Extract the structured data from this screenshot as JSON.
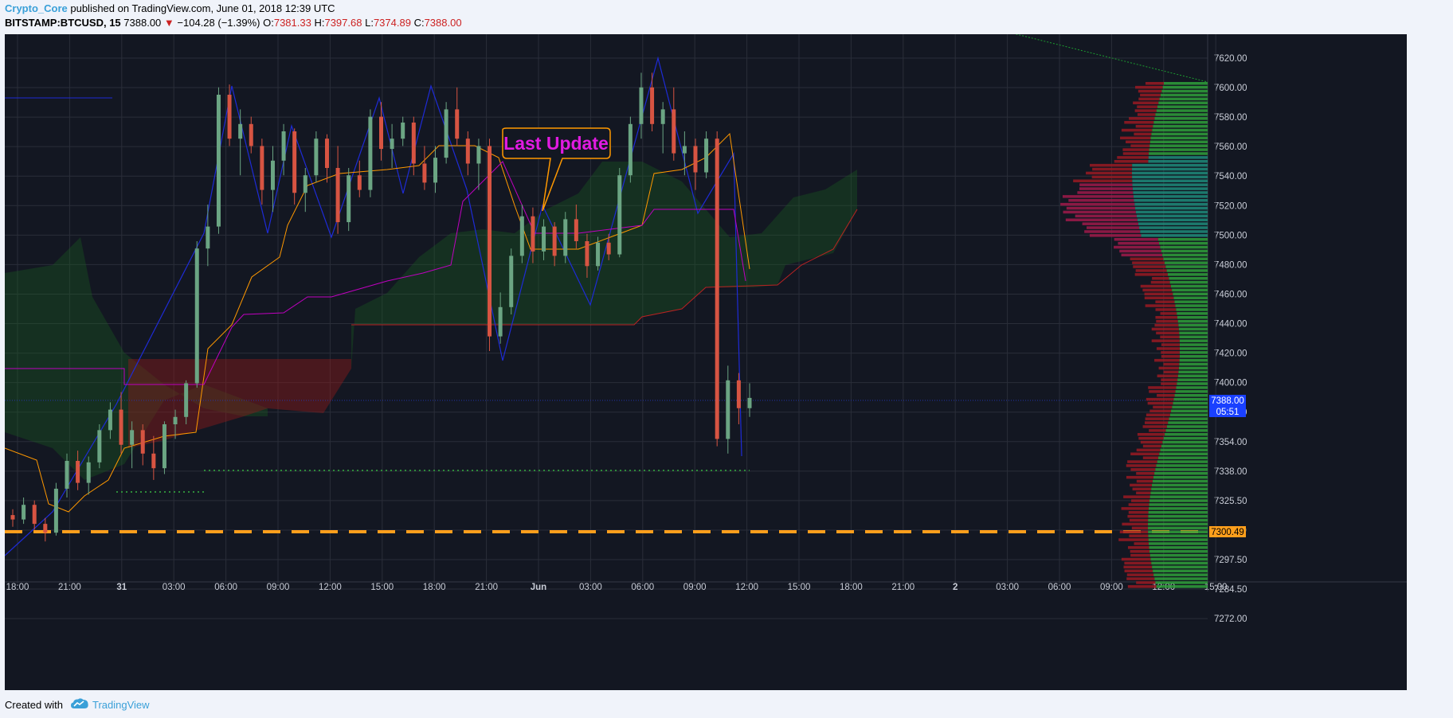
{
  "header": {
    "author": "Crypto_Core",
    "published_text": " published on TradingView.com, June 01, 2018 12:39 UTC",
    "symbol": "BITSTAMP:BTCUSD, 15",
    "last": "7388.00",
    "change_arrow": "▼",
    "change": "−104.28 (−1.39%)",
    "open_label": "O:",
    "open": "7381.33",
    "high_label": "H:",
    "high": "7397.68",
    "low_label": "L:",
    "low": "7374.89",
    "close_label": "C:",
    "close": "7388.00"
  },
  "footer": {
    "created_with": "Created with",
    "brand": "TradingView",
    "logo_icon": "tradingview-cloud-icon"
  },
  "colors": {
    "background": "#131722",
    "grid": "#2a2e39",
    "up": "#6ba583",
    "down": "#d75442",
    "kijun": "#ff9800",
    "tenkan": "#c000c0",
    "cloud_bull": "#1b5e20",
    "cloud_bear": "#8b1a1a",
    "support_line": "#ff9f1c",
    "zigzag": "#1e2bd6",
    "callout": "#ff9800",
    "callout_text": "#e11be1",
    "price_tag": "#1a40ff"
  },
  "chart_data": {
    "type": "candlestick",
    "symbol": "BITSTAMP:BTCUSD",
    "timeframe": "15",
    "x_tick_labels": [
      "18:00",
      "21:00",
      "31",
      "03:00",
      "06:00",
      "09:00",
      "12:00",
      "15:00",
      "18:00",
      "21:00",
      "Jun",
      "03:00",
      "06:00",
      "09:00",
      "12:00",
      "15:00",
      "18:00",
      "21:00",
      "2",
      "03:00",
      "06:00",
      "09:00",
      "12:00",
      "15:00"
    ],
    "y_tick_labels": [
      "7620.00",
      "7600.00",
      "7580.00",
      "7560.00",
      "7540.00",
      "7520.00",
      "7500.00",
      "7480.00",
      "7460.00",
      "7440.00",
      "7420.00",
      "7400.00",
      "7370.00",
      "7354.00",
      "7338.00",
      "7325.50",
      "7311.50",
      "7297.50",
      "7284.50",
      "7272.00"
    ],
    "current_price": "7388.00",
    "countdown": "05:51",
    "support_level": "7300.49",
    "annotation": "Last Update",
    "series": [
      {
        "type": "candles",
        "ohlc": [
          [
            7308,
            7312,
            7300,
            7305
          ],
          [
            7305,
            7320,
            7302,
            7315
          ],
          [
            7315,
            7318,
            7298,
            7302
          ],
          [
            7302,
            7306,
            7290,
            7296
          ],
          [
            7296,
            7330,
            7294,
            7326
          ],
          [
            7326,
            7350,
            7320,
            7345
          ],
          [
            7345,
            7352,
            7325,
            7330
          ],
          [
            7330,
            7348,
            7322,
            7344
          ],
          [
            7344,
            7370,
            7340,
            7366
          ],
          [
            7366,
            7385,
            7360,
            7380
          ],
          [
            7380,
            7392,
            7350,
            7356
          ],
          [
            7356,
            7372,
            7340,
            7366
          ],
          [
            7366,
            7370,
            7342,
            7350
          ],
          [
            7350,
            7362,
            7332,
            7340
          ],
          [
            7340,
            7372,
            7336,
            7370
          ],
          [
            7370,
            7380,
            7360,
            7375
          ],
          [
            7375,
            7400,
            7370,
            7398
          ],
          [
            7398,
            7495,
            7395,
            7490
          ],
          [
            7490,
            7520,
            7478,
            7505
          ],
          [
            7505,
            7600,
            7500,
            7595
          ],
          [
            7595,
            7602,
            7560,
            7565
          ],
          [
            7565,
            7585,
            7540,
            7575
          ],
          [
            7575,
            7580,
            7555,
            7560
          ],
          [
            7560,
            7565,
            7520,
            7530
          ],
          [
            7530,
            7560,
            7515,
            7550
          ],
          [
            7550,
            7575,
            7540,
            7570
          ],
          [
            7570,
            7572,
            7520,
            7528
          ],
          [
            7528,
            7545,
            7515,
            7540
          ],
          [
            7540,
            7570,
            7535,
            7565
          ],
          [
            7565,
            7568,
            7535,
            7545
          ],
          [
            7545,
            7560,
            7500,
            7508
          ],
          [
            7508,
            7545,
            7502,
            7540
          ],
          [
            7540,
            7550,
            7525,
            7530
          ],
          [
            7530,
            7585,
            7525,
            7580
          ],
          [
            7580,
            7590,
            7550,
            7558
          ],
          [
            7558,
            7575,
            7545,
            7565
          ],
          [
            7565,
            7580,
            7560,
            7576
          ],
          [
            7576,
            7580,
            7540,
            7548
          ],
          [
            7548,
            7560,
            7530,
            7535
          ],
          [
            7535,
            7560,
            7528,
            7552
          ],
          [
            7552,
            7590,
            7548,
            7585
          ],
          [
            7585,
            7600,
            7560,
            7565
          ],
          [
            7565,
            7570,
            7540,
            7548
          ],
          [
            7548,
            7565,
            7530,
            7560
          ],
          [
            7560,
            7565,
            7420,
            7430
          ],
          [
            7430,
            7460,
            7425,
            7450
          ],
          [
            7450,
            7490,
            7445,
            7485
          ],
          [
            7485,
            7520,
            7480,
            7512
          ],
          [
            7512,
            7518,
            7480,
            7488
          ],
          [
            7488,
            7510,
            7482,
            7505
          ],
          [
            7505,
            7508,
            7478,
            7485
          ],
          [
            7485,
            7515,
            7480,
            7510
          ],
          [
            7510,
            7520,
            7490,
            7495
          ],
          [
            7495,
            7500,
            7470,
            7478
          ],
          [
            7478,
            7498,
            7475,
            7494
          ],
          [
            7494,
            7500,
            7482,
            7486
          ],
          [
            7486,
            7545,
            7484,
            7540
          ],
          [
            7540,
            7580,
            7535,
            7575
          ],
          [
            7575,
            7610,
            7565,
            7600
          ],
          [
            7600,
            7610,
            7570,
            7575
          ],
          [
            7575,
            7590,
            7555,
            7585
          ],
          [
            7585,
            7600,
            7550,
            7555
          ],
          [
            7555,
            7570,
            7540,
            7560
          ],
          [
            7560,
            7565,
            7530,
            7542
          ],
          [
            7542,
            7570,
            7538,
            7565
          ],
          [
            7565,
            7570,
            7355,
            7360
          ],
          [
            7360,
            7410,
            7350,
            7400
          ],
          [
            7400,
            7405,
            7370,
            7381
          ],
          [
            7381,
            7398,
            7375,
            7388
          ]
        ]
      },
      {
        "type": "ichimoku",
        "name": "Ichimoku Cloud"
      },
      {
        "type": "volume_profile",
        "name": "Visible Range Volume Profile"
      }
    ]
  }
}
